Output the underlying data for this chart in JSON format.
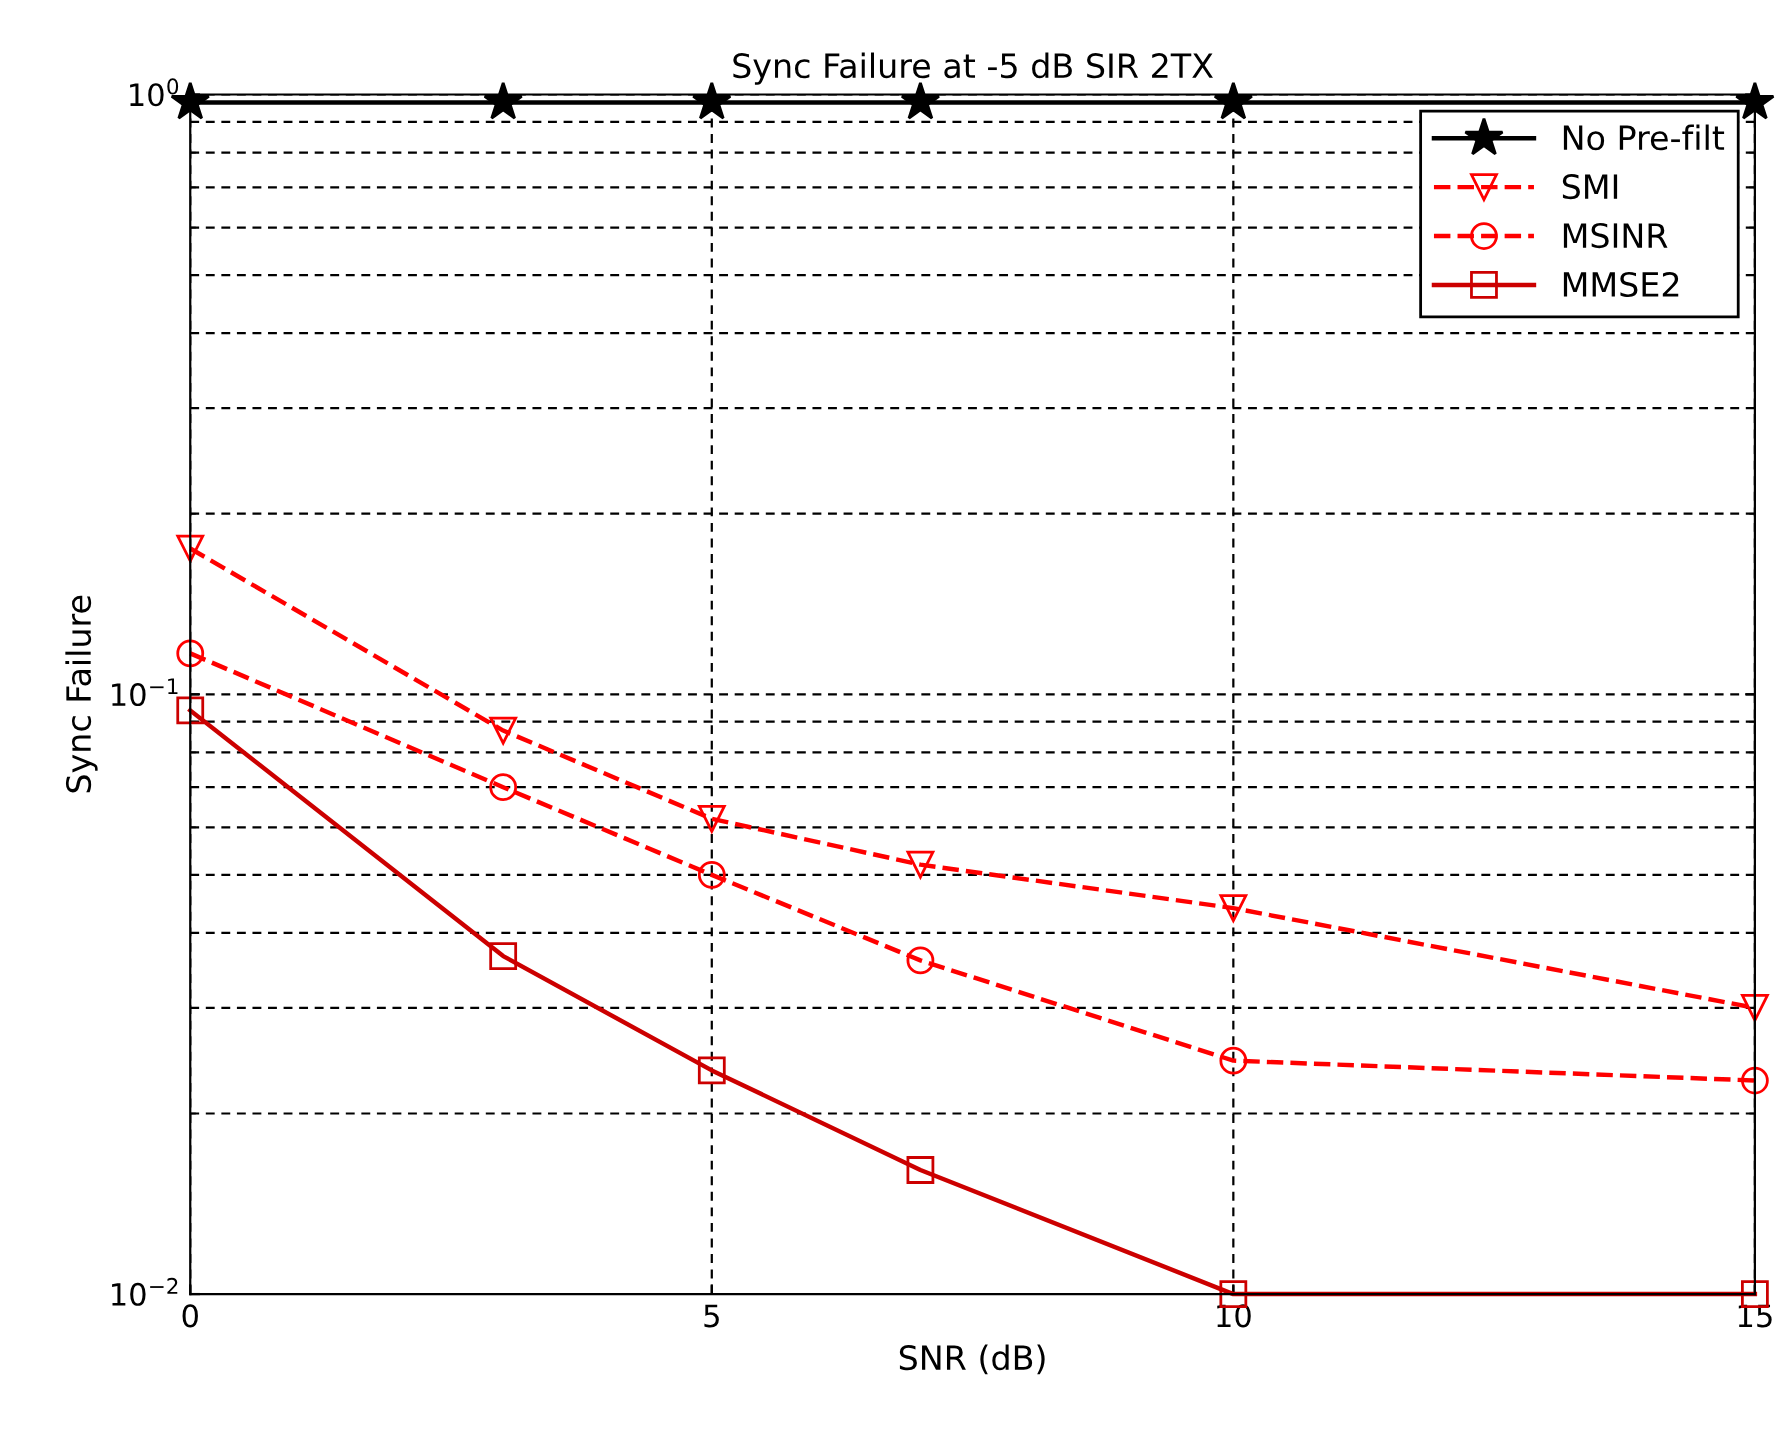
{
  "chart_data": {
    "type": "line",
    "title": "Sync Failure at -5 dB SIR 2TX",
    "xlabel": "SNR (dB)",
    "ylabel": "Sync Failure",
    "log": "y",
    "x": [
      0,
      3,
      5,
      7,
      10,
      15
    ],
    "xlim": [
      0,
      15
    ],
    "xticks": [
      0,
      5,
      10,
      15
    ],
    "ylim": [
      0.01,
      1
    ],
    "yticks": [
      {
        "value": 0.01,
        "label": "10$^{−2}$"
      },
      {
        "value": 0.1,
        "label": "10$^{−1}$"
      },
      {
        "value": 1,
        "label": "10$^{0}$"
      }
    ],
    "grid": true,
    "legend": "top right",
    "series": [
      {
        "name": "No Pre-filt",
        "color": "#000000",
        "marker": "star",
        "line_style": "solid",
        "values": [
          0.97,
          0.97,
          0.97,
          0.97,
          0.97,
          0.97
        ]
      },
      {
        "name": "SMI",
        "color": "#ff0000",
        "marker": "triangle",
        "line_style": "dashed",
        "values": [
          0.175,
          0.087,
          0.062,
          0.052,
          0.044,
          0.03
        ]
      },
      {
        "name": "MSINR",
        "color": "#ff0000",
        "marker": "circle",
        "line_style": "dashed",
        "values": [
          0.117,
          0.07,
          0.05,
          0.036,
          0.0245,
          0.0227
        ]
      },
      {
        "name": "MMSE2",
        "color": "#cc0000",
        "marker": "square",
        "line_style": "solid",
        "values": [
          0.094,
          0.0366,
          0.0236,
          0.0161,
          0.01,
          0.01
        ]
      }
    ]
  }
}
